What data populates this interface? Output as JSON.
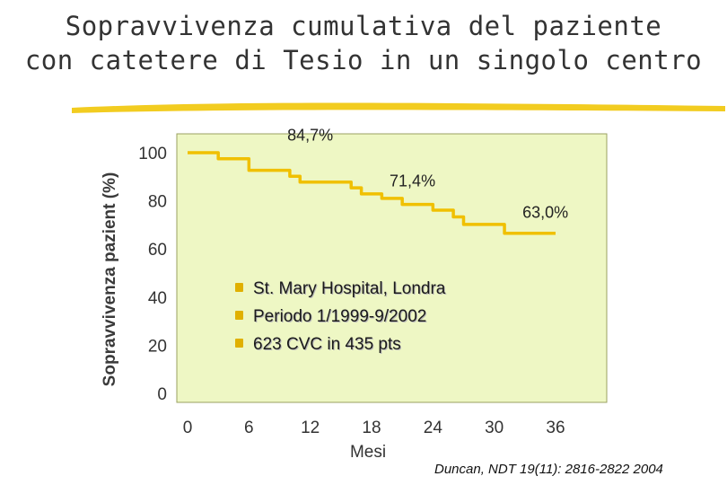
{
  "title_lines": [
    "Sopravvivenza cumulativa del paziente",
    "con catetere di Tesio in un singolo centro"
  ],
  "colors": {
    "plot_bg": "#eef7c4",
    "line": "#f0c000",
    "plot_border": "#9aa060",
    "underline": "#f2cc20"
  },
  "chart_data": {
    "type": "line",
    "title": "Sopravvivenza cumulativa del paziente con catetere di Tesio in un singolo centro",
    "xlabel": "Mesi",
    "ylabel": "Sopravvivenza pazient (%)",
    "xlim": [
      0,
      36
    ],
    "ylim": [
      0,
      100
    ],
    "x_ticks": [
      "0",
      "6",
      "12",
      "18",
      "24",
      "30",
      "36"
    ],
    "y_ticks": [
      "0",
      "20",
      "40",
      "60",
      "80",
      "100"
    ],
    "grid": false,
    "series": [
      {
        "step": true,
        "x": [
          0,
          2,
          3,
          5,
          6,
          8,
          10,
          11,
          14,
          16,
          17,
          19,
          21,
          22,
          24,
          26,
          27,
          30,
          31,
          34,
          36
        ],
        "y": [
          100,
          100,
          97.5,
          97.5,
          92.7,
          92.7,
          90.2,
          87.8,
          87.8,
          85.4,
          82.9,
          81.0,
          78.5,
          78.5,
          76.1,
          73.3,
          70.2,
          70.2,
          66.5,
          66.5,
          66.5
        ]
      }
    ],
    "annotations": [
      {
        "text": "84,7%",
        "x": 12,
        "y": 105
      },
      {
        "text": "71,4%",
        "x": 22,
        "y": 86
      },
      {
        "text": "63,0%",
        "x": 35,
        "y": 73
      }
    ]
  },
  "info_bullets": [
    "St. Mary Hospital, Londra",
    "Periodo 1/1999-9/2002",
    "623 CVC in 435 pts"
  ],
  "citation": "Duncan, NDT 19(11): 2816-2822 2004"
}
